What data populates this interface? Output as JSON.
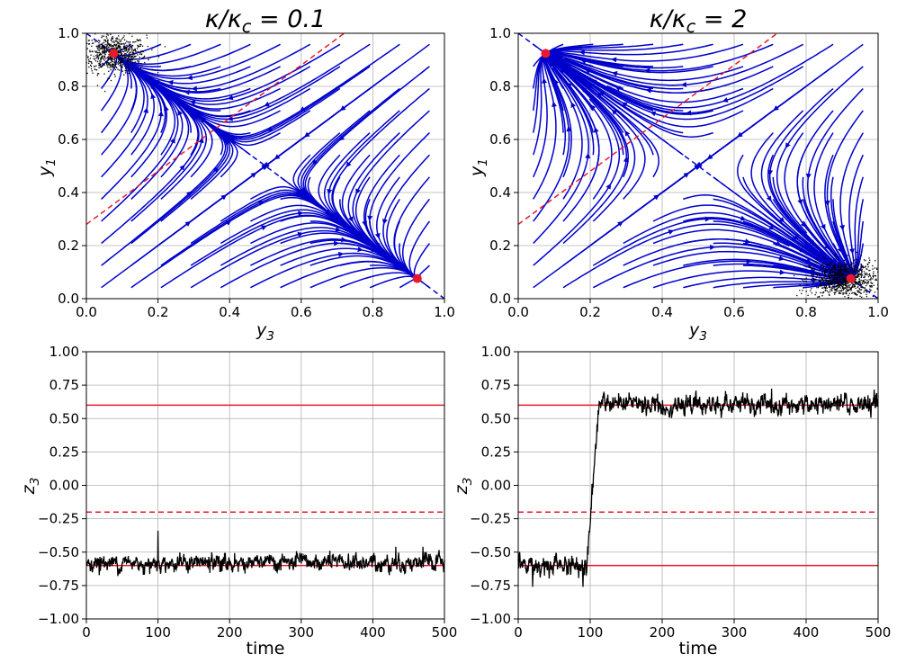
{
  "colors": {
    "stream": "#0000cc",
    "fixed_point": "#e8192c",
    "separatrix": "#e8192c",
    "noise": "#000000",
    "grid": "#b0b0b0"
  },
  "chart_data": [
    {
      "id": "phase-left",
      "type": "streamplot",
      "title_text": "κ/κ",
      "title_sub": "c",
      "title_value": " = 0.1",
      "kappa_ratio": 0.1,
      "xlabel_main": "y",
      "xlabel_sub": "3",
      "ylabel_main": "y",
      "ylabel_sub": "1",
      "xlim": [
        0,
        1
      ],
      "ylim": [
        0,
        1
      ],
      "xticks": [
        "0.0",
        "0.2",
        "0.4",
        "0.6",
        "0.8",
        "1.0"
      ],
      "yticks": [
        "0.0",
        "0.2",
        "0.4",
        "0.6",
        "0.8",
        "1.0"
      ],
      "grid": true,
      "fixed_points": [
        {
          "x": 0.076,
          "y": 0.924
        },
        {
          "x": 0.924,
          "y": 0.076
        }
      ],
      "diagonal_dashed": {
        "x": [
          0.0,
          1.0
        ],
        "y": [
          1.0,
          0.0
        ],
        "color": "stream"
      },
      "separatrix_dashed": {
        "x": [
          0.0,
          0.72
        ],
        "y": [
          0.28,
          1.0
        ],
        "color": "separatrix"
      },
      "noise_cloud": {
        "x": 0.076,
        "y": 0.924,
        "spread_x": 0.045,
        "spread_y": 0.035,
        "count": 700
      }
    },
    {
      "id": "phase-right",
      "type": "streamplot",
      "title_text": "κ/κ",
      "title_sub": "c",
      "title_value": " = 2",
      "kappa_ratio": 2,
      "xlabel_main": "y",
      "xlabel_sub": "3",
      "ylabel_main": "y",
      "ylabel_sub": "1",
      "xlim": [
        0,
        1
      ],
      "ylim": [
        0,
        1
      ],
      "xticks": [
        "0.0",
        "0.2",
        "0.4",
        "0.6",
        "0.8",
        "1.0"
      ],
      "yticks": [
        "0.0",
        "0.2",
        "0.4",
        "0.6",
        "0.8",
        "1.0"
      ],
      "grid": true,
      "fixed_points": [
        {
          "x": 0.076,
          "y": 0.924
        },
        {
          "x": 0.924,
          "y": 0.076
        }
      ],
      "diagonal_dashed": {
        "x": [
          0.0,
          1.0
        ],
        "y": [
          1.0,
          0.0
        ],
        "color": "stream"
      },
      "separatrix_dashed": {
        "x": [
          0.0,
          0.72
        ],
        "y": [
          0.28,
          1.0
        ],
        "color": "separatrix"
      },
      "noise_cloud": {
        "x": 0.9,
        "y": 0.075,
        "spread_x": 0.045,
        "spread_y": 0.035,
        "count": 900
      }
    },
    {
      "id": "time-left",
      "type": "line",
      "xlabel": "time",
      "ylabel_main": "z",
      "ylabel_sub": "3",
      "xlim": [
        0,
        500
      ],
      "ylim": [
        -1.0,
        1.0
      ],
      "xticks": [
        "0",
        "100",
        "200",
        "300",
        "400",
        "500"
      ],
      "yticks": [
        "−1.00",
        "−0.75",
        "−0.50",
        "−0.25",
        "0.00",
        "0.25",
        "0.50",
        "0.75",
        "1.00"
      ],
      "grid": true,
      "hlines_solid": [
        0.6,
        -0.6
      ],
      "hline_dashed": -0.2,
      "series": {
        "name": "z3",
        "segments": [
          {
            "t0": 0,
            "t1": 500,
            "mean": -0.58,
            "noise": 0.04
          }
        ],
        "spikes": [
          {
            "t": 100,
            "value": -0.34
          },
          {
            "t": 432,
            "value": -0.46
          },
          {
            "t": 470,
            "value": -0.46
          }
        ]
      }
    },
    {
      "id": "time-right",
      "type": "line",
      "xlabel": "time",
      "ylabel_main": "z",
      "ylabel_sub": "3",
      "xlim": [
        0,
        500
      ],
      "ylim": [
        -1.0,
        1.0
      ],
      "xticks": [
        "0",
        "100",
        "200",
        "300",
        "400",
        "500"
      ],
      "yticks": [
        "−1.00",
        "−0.75",
        "−0.50",
        "−0.25",
        "0.00",
        "0.25",
        "0.50",
        "0.75",
        "1.00"
      ],
      "grid": true,
      "hlines_solid": [
        0.6,
        -0.6
      ],
      "hline_dashed": -0.2,
      "series": {
        "name": "z3",
        "segments": [
          {
            "t0": 0,
            "t1": 95,
            "mean": -0.6,
            "noise": 0.05
          },
          {
            "t0": 95,
            "t1": 112,
            "mean": 0.0,
            "noise": 0.0,
            "ramp_from": -0.6,
            "ramp_to": 0.6
          },
          {
            "t0": 112,
            "t1": 500,
            "mean": 0.6,
            "noise": 0.045
          }
        ],
        "spikes": [
          {
            "t": 20,
            "value": -0.76
          },
          {
            "t": 90,
            "value": -0.76
          }
        ]
      }
    }
  ]
}
